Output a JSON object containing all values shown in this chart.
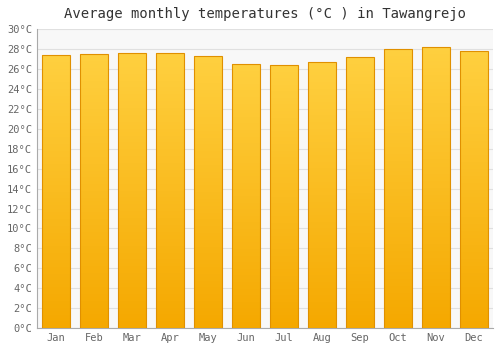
{
  "title": "Average monthly temperatures (°C ) in Tawangrejo",
  "months": [
    "Jan",
    "Feb",
    "Mar",
    "Apr",
    "May",
    "Jun",
    "Jul",
    "Aug",
    "Sep",
    "Oct",
    "Nov",
    "Dec"
  ],
  "values": [
    27.4,
    27.5,
    27.6,
    27.6,
    27.3,
    26.5,
    26.4,
    26.7,
    27.2,
    28.0,
    28.2,
    27.8
  ],
  "ylim": [
    0,
    30
  ],
  "yticks": [
    0,
    2,
    4,
    6,
    8,
    10,
    12,
    14,
    16,
    18,
    20,
    22,
    24,
    26,
    28,
    30
  ],
  "bar_color_top": "#FFD040",
  "bar_color_bottom": "#F5A800",
  "bar_edge_color": "#E09000",
  "background_color": "#FFFFFF",
  "plot_bg_color": "#F8F8F8",
  "grid_color": "#E0E0E0",
  "title_fontsize": 10,
  "tick_fontsize": 7.5,
  "title_font_family": "monospace"
}
